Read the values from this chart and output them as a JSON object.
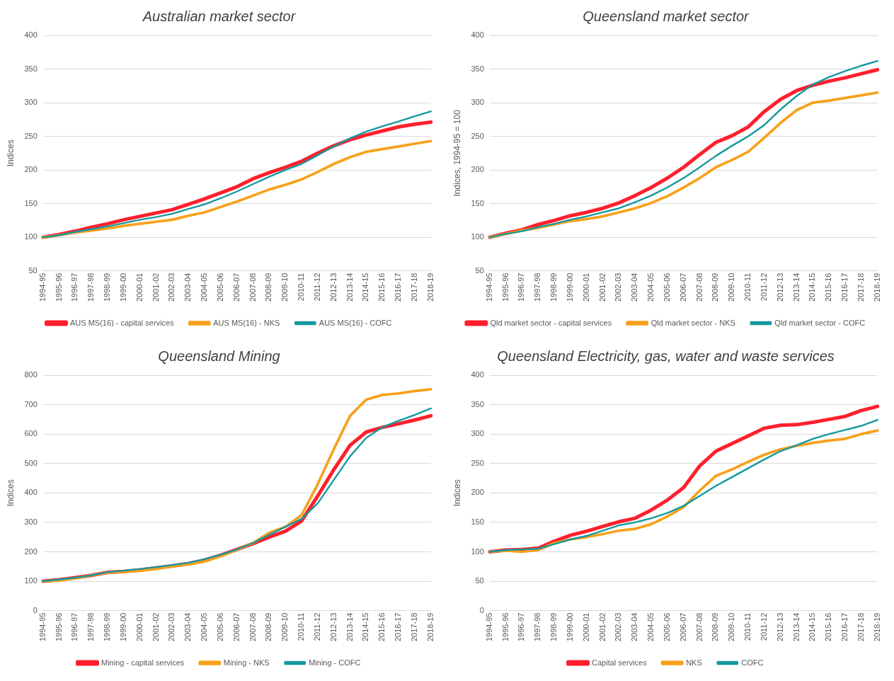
{
  "chart_data": [
    {
      "type": "line",
      "title": "Australian market sector",
      "ylabel": "Indices",
      "categories": [
        "1994-95",
        "1995-96",
        "1996-97",
        "1997-98",
        "1998-99",
        "1999-00",
        "2000-01",
        "2001-02",
        "2002-03",
        "2003-04",
        "2004-05",
        "2005-06",
        "2006-07",
        "2007-08",
        "2008-09",
        "2009-10",
        "2010-11",
        "2011-12",
        "2012-13",
        "2013-14",
        "2014-15",
        "2015-16",
        "2016-17",
        "2017-18",
        "2018-19"
      ],
      "ylim": [
        50,
        400
      ],
      "yticks": [
        50,
        100,
        150,
        200,
        250,
        300,
        350,
        400
      ],
      "grid": "y",
      "legend": "bottom",
      "marker": "none",
      "series": [
        {
          "name": "AUS MS(16) - capital services",
          "color": "#ff1f2d",
          "values": [
            100,
            104,
            109,
            115,
            120,
            126,
            131,
            136,
            141,
            149,
            157,
            166,
            175,
            187,
            196,
            204,
            213,
            225,
            236,
            245,
            252,
            258,
            264,
            268,
            271
          ]
        },
        {
          "name": "AUS MS(16) - NKS",
          "color": "#f7a11a",
          "values": [
            100,
            103,
            107,
            110,
            113,
            117,
            120,
            123,
            126,
            132,
            137,
            145,
            153,
            162,
            171,
            178,
            186,
            197,
            209,
            219,
            227,
            231,
            235,
            239,
            243
          ]
        },
        {
          "name": "AUS MS(16) - COFC",
          "color": "#14999f",
          "values": [
            100,
            103,
            108,
            112,
            116,
            121,
            126,
            130,
            135,
            142,
            149,
            158,
            168,
            179,
            190,
            200,
            209,
            222,
            235,
            247,
            257,
            265,
            272,
            280,
            287
          ]
        }
      ]
    },
    {
      "type": "line",
      "title": "Queensland market sector",
      "ylabel": "Indices, 1994-95 = 100",
      "categories": [
        "1994-95",
        "1995-96",
        "1996-97",
        "1997-98",
        "1998-99",
        "1999-00",
        "2000-01",
        "2001-02",
        "2002-03",
        "2003-04",
        "2004-05",
        "2005-06",
        "2006-07",
        "2007-08",
        "2008-09",
        "2009-10",
        "2010-11",
        "2011-12",
        "2012-13",
        "2013-14",
        "2014-15",
        "2015-16",
        "2016-17",
        "2017-18",
        "2018-19"
      ],
      "ylim": [
        50,
        400
      ],
      "yticks": [
        50,
        100,
        150,
        200,
        250,
        300,
        350,
        400
      ],
      "grid": "y",
      "legend": "bottom",
      "marker": "none",
      "series": [
        {
          "name": "Qld market sector - capital services",
          "color": "#ff1f2d",
          "values": [
            100,
            106,
            111,
            119,
            125,
            132,
            137,
            143,
            151,
            162,
            174,
            188,
            204,
            223,
            241,
            251,
            264,
            287,
            305,
            318,
            326,
            332,
            337,
            343,
            349
          ]
        },
        {
          "name": "Qld market sector - NKS",
          "color": "#f7a11a",
          "values": [
            100,
            105,
            110,
            114,
            119,
            124,
            127,
            131,
            137,
            143,
            151,
            161,
            174,
            188,
            204,
            215,
            227,
            248,
            270,
            289,
            300,
            303,
            307,
            311,
            315
          ]
        },
        {
          "name": "Qld market sector - COFC",
          "color": "#14999f",
          "values": [
            100,
            105,
            109,
            115,
            120,
            126,
            131,
            137,
            143,
            152,
            162,
            174,
            188,
            204,
            221,
            236,
            250,
            267,
            290,
            310,
            327,
            338,
            347,
            355,
            362
          ]
        }
      ]
    },
    {
      "type": "line",
      "title": "Queensland Mining",
      "ylabel": "Indices",
      "categories": [
        "1994-95",
        "1995-96",
        "1996-97",
        "1997-98",
        "1998-99",
        "1999-00",
        "2000-01",
        "2001-02",
        "2002-03",
        "2003-04",
        "2004-05",
        "2005-06",
        "2006-07",
        "2007-08",
        "2008-09",
        "2009-10",
        "2010-11",
        "2011-12",
        "2012-13",
        "2013-14",
        "2014-15",
        "2015-16",
        "2016-17",
        "2017-18",
        "2018-19"
      ],
      "ylim": [
        0,
        800
      ],
      "yticks": [
        0,
        100,
        200,
        300,
        400,
        500,
        600,
        700,
        800
      ],
      "grid": "y",
      "legend": "bottom",
      "marker": "none",
      "series": [
        {
          "name": "Mining - capital services",
          "color": "#ff1f2d",
          "values": [
            100,
            105,
            112,
            120,
            130,
            133,
            138,
            145,
            152,
            160,
            172,
            188,
            208,
            228,
            250,
            270,
            305,
            390,
            480,
            562,
            607,
            623,
            635,
            648,
            662
          ]
        },
        {
          "name": "Mining - NKS",
          "color": "#f7a11a",
          "values": [
            100,
            103,
            110,
            120,
            130,
            132,
            135,
            142,
            150,
            157,
            167,
            185,
            207,
            230,
            265,
            285,
            325,
            430,
            550,
            662,
            717,
            733,
            738,
            746,
            752
          ]
        },
        {
          "name": "Mining - COFC",
          "color": "#14999f",
          "values": [
            100,
            106,
            112,
            120,
            131,
            136,
            142,
            148,
            155,
            163,
            175,
            190,
            208,
            230,
            258,
            285,
            312,
            365,
            445,
            525,
            587,
            623,
            645,
            665,
            687
          ]
        }
      ]
    },
    {
      "type": "line",
      "title": "Queensland Electricity, gas, water and waste services",
      "ylabel": "Indices",
      "categories": [
        "1994-95",
        "1995-96",
        "1996-97",
        "1997-98",
        "1998-99",
        "1999-00",
        "2000-01",
        "2001-02",
        "2002-03",
        "2003-04",
        "2004-05",
        "2005-06",
        "2006-07",
        "2007-08",
        "2008-09",
        "2009-10",
        "2010-11",
        "2011-12",
        "2012-13",
        "2013-14",
        "2014-15",
        "2015-16",
        "2016-17",
        "2017-18",
        "2018-19"
      ],
      "ylim": [
        0,
        400
      ],
      "yticks": [
        0,
        50,
        100,
        150,
        200,
        250,
        300,
        350,
        400
      ],
      "grid": "y",
      "legend": "bottom",
      "marker": "none",
      "series": [
        {
          "name": "Capital services",
          "color": "#ff1f2d",
          "values": [
            100,
            103,
            104,
            106,
            118,
            128,
            135,
            143,
            151,
            157,
            171,
            188,
            209,
            246,
            271,
            284,
            297,
            310,
            315,
            316,
            320,
            325,
            330,
            340,
            347
          ]
        },
        {
          "name": "NKS",
          "color": "#f7a11a",
          "values": [
            100,
            102,
            100,
            103,
            115,
            121,
            125,
            130,
            136,
            139,
            147,
            160,
            176,
            204,
            229,
            240,
            253,
            265,
            274,
            280,
            285,
            289,
            292,
            300,
            306
          ]
        },
        {
          "name": "COFC",
          "color": "#14999f",
          "values": [
            100,
            103,
            104,
            105,
            113,
            121,
            127,
            136,
            145,
            150,
            157,
            166,
            178,
            195,
            212,
            227,
            242,
            257,
            271,
            281,
            292,
            300,
            307,
            314,
            324
          ]
        }
      ]
    }
  ]
}
